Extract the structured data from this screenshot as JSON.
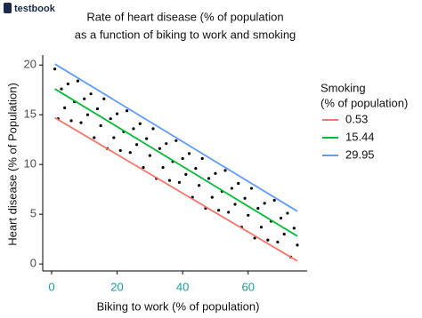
{
  "logo": "testbook",
  "chart_data": {
    "type": "scatter",
    "title_lines": [
      "Rate of heart disease (% of population",
      "as a function of biking to work and smoking"
    ],
    "x_label": "Biking to work (% of population)",
    "y_label": "Heart disease (% of Population)",
    "xlim": [
      -2.7,
      78
    ],
    "ylim": [
      -0.7,
      21
    ],
    "xticks": [
      0,
      20,
      40,
      60
    ],
    "yticks": [
      0,
      5,
      10,
      15,
      20
    ],
    "point_color": "#000000",
    "x": [
      1,
      2,
      3,
      4,
      5,
      6,
      7,
      8,
      9,
      10,
      11,
      12,
      13,
      14,
      15,
      16,
      17,
      18,
      19,
      20,
      21,
      22,
      23,
      24,
      25,
      26,
      27,
      28,
      29,
      30,
      31,
      32,
      33,
      34,
      35,
      36,
      37,
      38,
      39,
      40,
      41,
      42,
      43,
      44,
      45,
      46,
      47,
      48,
      49,
      50,
      51,
      52,
      53,
      54,
      55,
      56,
      57,
      58,
      59,
      60,
      61,
      62,
      63,
      64,
      65,
      66,
      67,
      68,
      69,
      70,
      71,
      72,
      73,
      74,
      75
    ],
    "y": [
      19.6,
      14.6,
      17.6,
      15.7,
      18.1,
      14.4,
      16.3,
      18.4,
      14.2,
      16.6,
      15.0,
      17.1,
      12.7,
      15.6,
      13.9,
      16.6,
      11.6,
      14.6,
      12.7,
      15.1,
      11.4,
      13.3,
      15.4,
      11.2,
      13.6,
      12.0,
      14.1,
      9.7,
      12.6,
      10.9,
      13.6,
      8.6,
      11.6,
      9.7,
      12.1,
      8.4,
      10.3,
      12.4,
      8.2,
      10.6,
      9.0,
      11.1,
      6.7,
      9.6,
      7.9,
      10.6,
      5.6,
      8.6,
      6.7,
      9.1,
      5.4,
      7.3,
      9.4,
      5.2,
      7.6,
      6.0,
      8.1,
      3.7,
      6.6,
      4.9,
      7.6,
      2.6,
      5.6,
      3.7,
      6.1,
      2.4,
      4.3,
      6.4,
      2.2,
      4.6,
      3.0,
      5.1,
      0.7,
      3.6,
      1.9
    ],
    "legend_title_lines": [
      "Smoking",
      "(% of population)"
    ],
    "lines": [
      {
        "name": "0.53",
        "color": "#f8766d",
        "x": [
          1,
          75
        ],
        "y": [
          14.7,
          0.3
        ]
      },
      {
        "name": "15.44",
        "color": "#00ba38",
        "x": [
          1,
          75
        ],
        "y": [
          17.6,
          2.8
        ]
      },
      {
        "name": "29.95",
        "color": "#619cff",
        "x": [
          1,
          75
        ],
        "y": [
          20.1,
          5.3
        ]
      }
    ]
  }
}
